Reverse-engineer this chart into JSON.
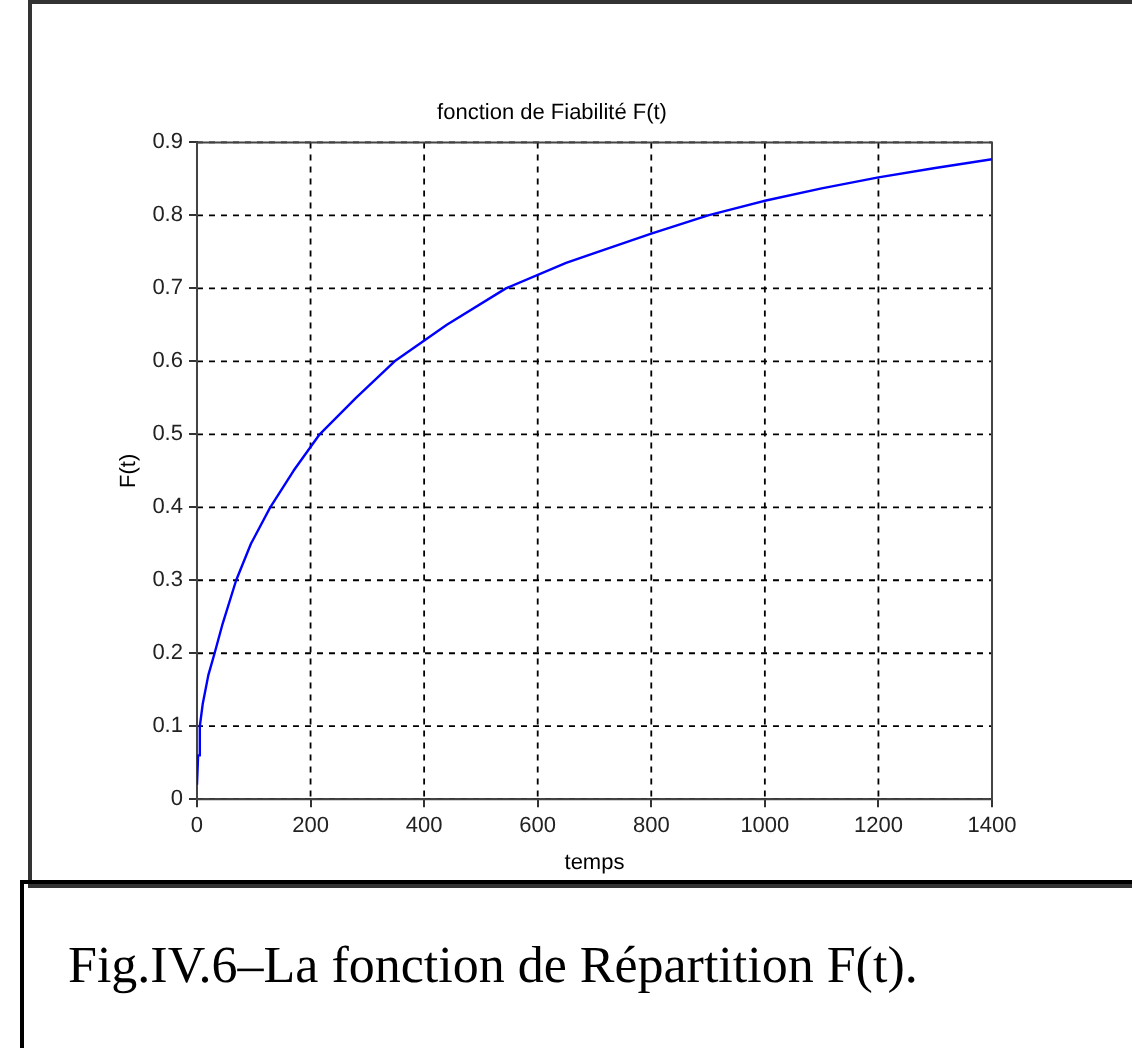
{
  "chart_data": {
    "type": "line",
    "title": "fonction de Fiabilité F(t)",
    "xlabel": "temps",
    "ylabel": "F(t)",
    "x": [
      0,
      2,
      5,
      10,
      20,
      31,
      45,
      69,
      95,
      129,
      170,
      216,
      280,
      348,
      440,
      544,
      650,
      800,
      900,
      1000,
      1100,
      1200,
      1300,
      1400
    ],
    "series": [
      {
        "color": "#0000ff",
        "values": [
          0.02,
          0.06,
          0.1,
          0.13,
          0.17,
          0.2,
          0.24,
          0.3,
          0.35,
          0.4,
          0.45,
          0.5,
          0.55,
          0.6,
          0.65,
          0.7,
          0.735,
          0.775,
          0.8,
          0.82,
          0.837,
          0.852,
          0.865,
          0.877
        ]
      }
    ],
    "xlim": [
      0,
      1400
    ],
    "xticks": [
      0,
      200,
      400,
      600,
      800,
      1000,
      1200,
      1400
    ],
    "ylim": [
      0,
      0.9
    ],
    "yticks": [
      0,
      0.1,
      0.2,
      0.3,
      0.4,
      0.5,
      0.6,
      0.7,
      0.8,
      0.9
    ],
    "grid": true,
    "legend": false,
    "marker": "none",
    "line_style": "solid",
    "annotations": [
      "Fig.IV.6–La fonction de Répartition F(t)."
    ]
  }
}
